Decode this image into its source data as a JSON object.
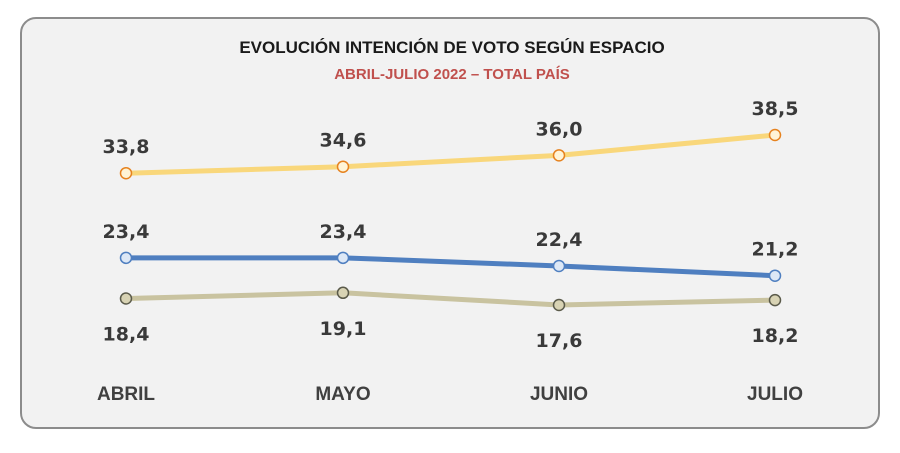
{
  "chart_data": {
    "type": "line",
    "title": "EVOLUCIÓN INTENCIÓN DE VOTO SEGÚN ESPACIO",
    "subtitle": "ABRIL-JULIO 2022 – TOTAL PAÍS",
    "categories": [
      "ABRIL",
      "MAYO",
      "JUNIO",
      "JULIO"
    ],
    "series": [
      {
        "values": [
          33.8,
          34.6,
          36.0,
          38.5
        ],
        "labels": [
          "33,8",
          "34,6",
          "36,0",
          "38,5"
        ],
        "color": "#f9d77b",
        "marker_stroke": "#e6821e",
        "label_position": "above"
      },
      {
        "values": [
          23.4,
          23.4,
          22.4,
          21.2
        ],
        "labels": [
          "23,4",
          "23,4",
          "22,4",
          "21,2"
        ],
        "color": "#4f7fc0",
        "marker_stroke": "#4f7fc0",
        "label_position": "above"
      },
      {
        "values": [
          18.4,
          19.1,
          17.6,
          18.2
        ],
        "labels": [
          "18,4",
          "19,1",
          "17,6",
          "18,2"
        ],
        "color": "#c9c3a0",
        "marker_stroke": "#5a5a4a",
        "label_position": "below"
      }
    ],
    "grid": false,
    "legend": "none",
    "colors": {
      "subtitle": "#c0504d",
      "frame_border": "#8c8c8c",
      "background": "#f2f2f2"
    }
  }
}
